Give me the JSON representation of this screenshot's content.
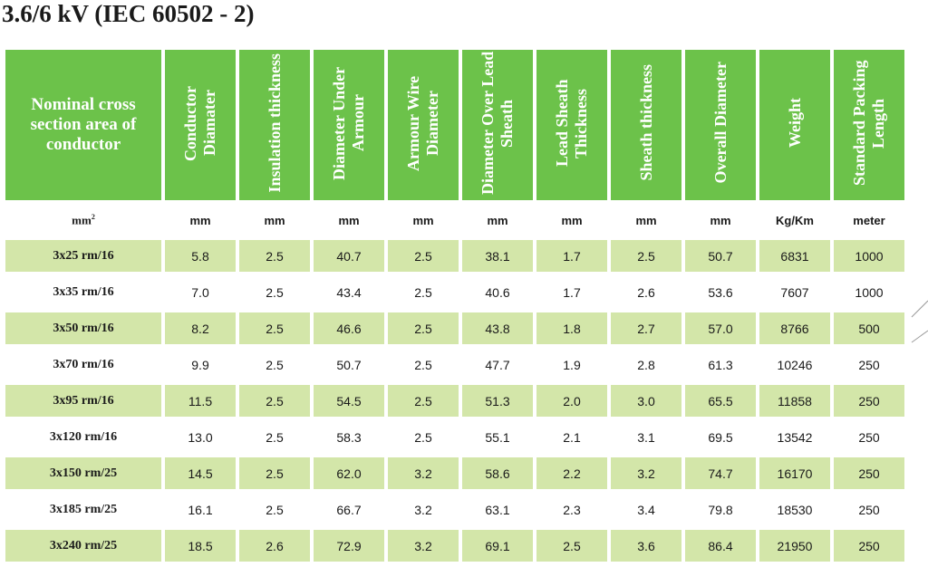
{
  "title": "3.6/6 kV (IEC 60502 - 2)",
  "headers": [
    "Nominal cross section area of conductor",
    "Conductor Diamater",
    "Insulation thickness",
    "Diameter Under Armour",
    "Armour Wire Diameter",
    "Diameter Over Lead Sheath",
    "Lead Sheath Thickness",
    "Sheath thickness",
    "Overall Diameter",
    "Weight",
    "Standard Packing Length"
  ],
  "unit_first": "mm",
  "unit_first_sup": "2",
  "units": [
    "mm",
    "mm",
    "mm",
    "mm",
    "mm",
    "mm",
    "mm",
    "mm",
    "Kg/Km",
    "meter"
  ],
  "rows": [
    [
      "3x25 rm/16",
      "5.8",
      "2.5",
      "40.7",
      "2.5",
      "38.1",
      "1.7",
      "2.5",
      "50.7",
      "6831",
      "1000"
    ],
    [
      "3x35 rm/16",
      "7.0",
      "2.5",
      "43.4",
      "2.5",
      "40.6",
      "1.7",
      "2.6",
      "53.6",
      "7607",
      "1000"
    ],
    [
      "3x50 rm/16",
      "8.2",
      "2.5",
      "46.6",
      "2.5",
      "43.8",
      "1.8",
      "2.7",
      "57.0",
      "8766",
      "500"
    ],
    [
      "3x70 rm/16",
      "9.9",
      "2.5",
      "50.7",
      "2.5",
      "47.7",
      "1.9",
      "2.8",
      "61.3",
      "10246",
      "250"
    ],
    [
      "3x95 rm/16",
      "11.5",
      "2.5",
      "54.5",
      "2.5",
      "51.3",
      "2.0",
      "3.0",
      "65.5",
      "11858",
      "250"
    ],
    [
      "3x120 rm/16",
      "13.0",
      "2.5",
      "58.3",
      "2.5",
      "55.1",
      "2.1",
      "3.1",
      "69.5",
      "13542",
      "250"
    ],
    [
      "3x150 rm/25",
      "14.5",
      "2.5",
      "62.0",
      "3.2",
      "58.6",
      "2.2",
      "3.2",
      "74.7",
      "16170",
      "250"
    ],
    [
      "3x185 rm/25",
      "16.1",
      "2.5",
      "66.7",
      "3.2",
      "63.1",
      "2.3",
      "3.4",
      "79.8",
      "18530",
      "250"
    ],
    [
      "3x240 rm/25",
      "18.5",
      "2.6",
      "72.9",
      "3.2",
      "69.1",
      "2.5",
      "3.6",
      "86.4",
      "21950",
      "250"
    ]
  ],
  "colors": {
    "header_bg": "#6cc24a",
    "row_shade": "#d3e6a9",
    "text": "#1a1a1a"
  }
}
